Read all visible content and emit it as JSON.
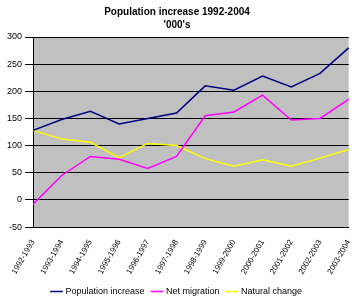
{
  "chart_data": {
    "type": "line",
    "title": "Population increase 1992-2004",
    "subtitle": "'000's",
    "categories": [
      "1992-1993",
      "1993-1994",
      "1994-1995",
      "1995-1996",
      "1996-1997",
      "1997-1998",
      "1998-1999",
      "1999-2000",
      "2000-2001",
      "2001-2002",
      "2002-2003",
      "2003-2004"
    ],
    "series": [
      {
        "name": "Population increase",
        "color": "#000080",
        "values": [
          128,
          148,
          163,
          140,
          150,
          160,
          210,
          202,
          228,
          208,
          233,
          280
        ]
      },
      {
        "name": "Net migration",
        "color": "#ff00ff",
        "values": [
          -8,
          45,
          80,
          75,
          58,
          80,
          155,
          162,
          193,
          147,
          150,
          185
        ]
      },
      {
        "name": "Natural change",
        "color": "#ffff00",
        "values": [
          128,
          112,
          106,
          78,
          104,
          100,
          76,
          62,
          74,
          62,
          77,
          93
        ]
      }
    ],
    "ylim": [
      -50,
      300
    ],
    "yticks": [
      -50,
      0,
      50,
      100,
      150,
      200,
      250,
      300
    ],
    "grid": true,
    "legend": "bottom"
  }
}
